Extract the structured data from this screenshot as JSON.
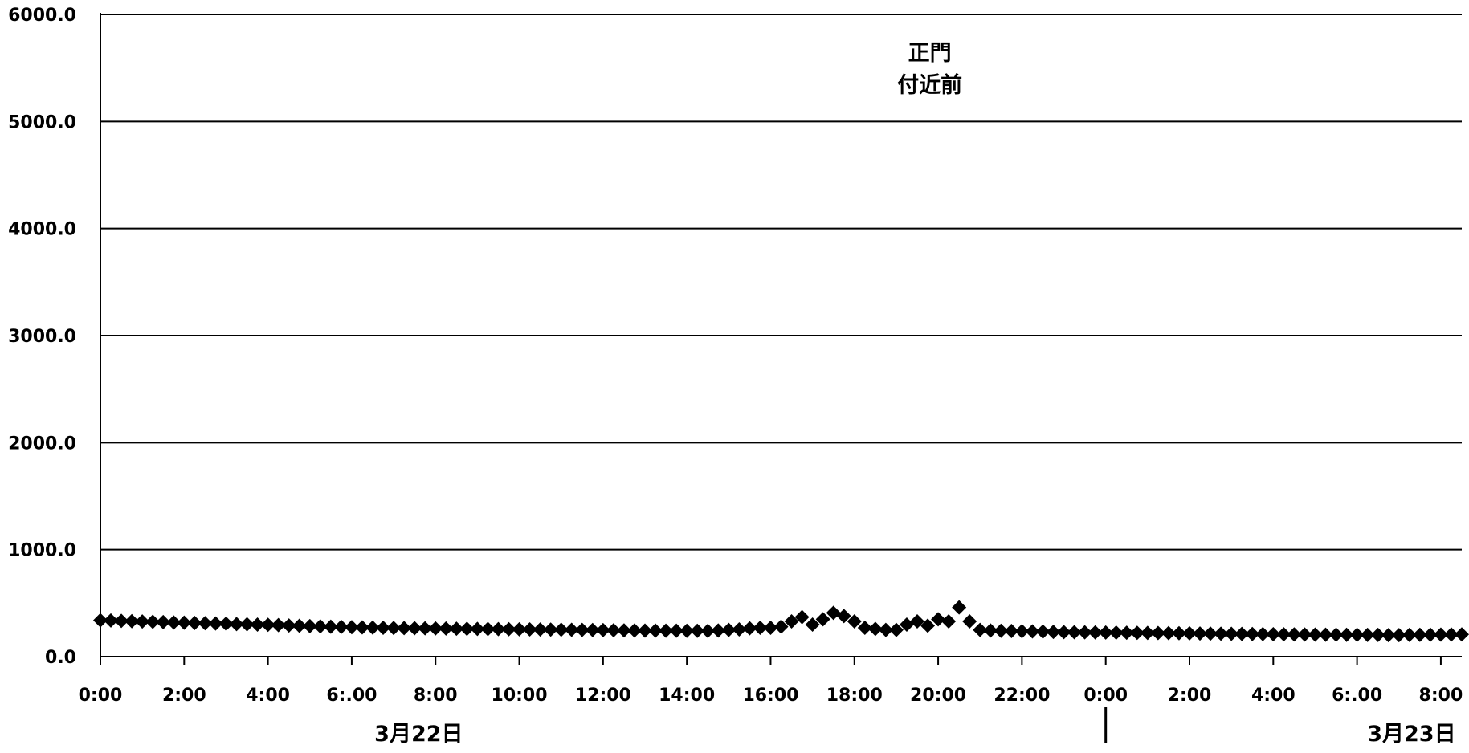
{
  "chart_data": {
    "type": "scatter",
    "title_line1": "正門",
    "title_line2": "付近前",
    "ylim": [
      0,
      6000
    ],
    "y_ticks": [
      "0.0",
      "1000.0",
      "2000.0",
      "3000.0",
      "4000.0",
      "5000.0",
      "6000.0"
    ],
    "x_ticks": [
      "0:00",
      "2:00",
      "4:00",
      "6:.00",
      "8:00",
      "10:00",
      "12:00",
      "14:00",
      "16:00",
      "18:00",
      "20:00",
      "22:00",
      "0:00",
      "2:00",
      "4:00",
      "6:.00",
      "8:00"
    ],
    "date_labels": [
      "3月22日",
      "3月23日"
    ],
    "grid": true,
    "marker": "diamond",
    "marker_color": "#000000",
    "x_unit": "hours since 3月22日 0:00",
    "x_range": [
      0,
      32.5
    ],
    "series": [
      {
        "values": [
          [
            0.0,
            340
          ],
          [
            0.25,
            338
          ],
          [
            0.5,
            335
          ],
          [
            0.75,
            332
          ],
          [
            1.0,
            329
          ],
          [
            1.25,
            326
          ],
          [
            1.5,
            323
          ],
          [
            1.75,
            320
          ],
          [
            2.0,
            318
          ],
          [
            2.25,
            315
          ],
          [
            2.5,
            313
          ],
          [
            2.75,
            310
          ],
          [
            3.0,
            308
          ],
          [
            3.25,
            305
          ],
          [
            3.5,
            303
          ],
          [
            3.75,
            300
          ],
          [
            4.0,
            298
          ],
          [
            4.25,
            295
          ],
          [
            4.5,
            292
          ],
          [
            4.75,
            289
          ],
          [
            5.0,
            286
          ],
          [
            5.25,
            283
          ],
          [
            5.5,
            280
          ],
          [
            5.75,
            278
          ],
          [
            6.0,
            276
          ],
          [
            6.25,
            274
          ],
          [
            6.5,
            272
          ],
          [
            6.75,
            270
          ],
          [
            7.0,
            268
          ],
          [
            7.25,
            267
          ],
          [
            7.5,
            266
          ],
          [
            7.75,
            265
          ],
          [
            8.0,
            264
          ],
          [
            8.25,
            263
          ],
          [
            8.5,
            262
          ],
          [
            8.75,
            261
          ],
          [
            9.0,
            260
          ],
          [
            9.25,
            259
          ],
          [
            9.5,
            258
          ],
          [
            9.75,
            257
          ],
          [
            10.0,
            256
          ],
          [
            10.25,
            255
          ],
          [
            10.5,
            254
          ],
          [
            10.75,
            253
          ],
          [
            11.0,
            252
          ],
          [
            11.25,
            251
          ],
          [
            11.5,
            250
          ],
          [
            11.75,
            249
          ],
          [
            12.0,
            248
          ],
          [
            12.25,
            247
          ],
          [
            12.5,
            246
          ],
          [
            12.75,
            245
          ],
          [
            13.0,
            244
          ],
          [
            13.25,
            244
          ],
          [
            13.5,
            243
          ],
          [
            13.75,
            243
          ],
          [
            14.0,
            242
          ],
          [
            14.25,
            242
          ],
          [
            14.5,
            241
          ],
          [
            14.75,
            245
          ],
          [
            15.0,
            250
          ],
          [
            15.25,
            255
          ],
          [
            15.5,
            265
          ],
          [
            15.75,
            270
          ],
          [
            16.0,
            270
          ],
          [
            16.25,
            280
          ],
          [
            16.5,
            330
          ],
          [
            16.75,
            370
          ],
          [
            17.0,
            300
          ],
          [
            17.25,
            350
          ],
          [
            17.5,
            410
          ],
          [
            17.75,
            380
          ],
          [
            18.0,
            330
          ],
          [
            18.25,
            270
          ],
          [
            18.5,
            260
          ],
          [
            18.75,
            250
          ],
          [
            19.0,
            250
          ],
          [
            19.25,
            300
          ],
          [
            19.5,
            330
          ],
          [
            19.75,
            290
          ],
          [
            20.0,
            350
          ],
          [
            20.25,
            330
          ],
          [
            20.5,
            460
          ],
          [
            20.75,
            330
          ],
          [
            21.0,
            250
          ],
          [
            21.25,
            245
          ],
          [
            21.5,
            242
          ],
          [
            21.75,
            240
          ],
          [
            22.0,
            238
          ],
          [
            22.25,
            236
          ],
          [
            22.5,
            234
          ],
          [
            22.75,
            232
          ],
          [
            23.0,
            230
          ],
          [
            23.25,
            229
          ],
          [
            23.5,
            228
          ],
          [
            23.75,
            227
          ],
          [
            24.0,
            226
          ],
          [
            24.25,
            225
          ],
          [
            24.5,
            224
          ],
          [
            24.75,
            223
          ],
          [
            25.0,
            222
          ],
          [
            25.25,
            221
          ],
          [
            25.5,
            220
          ],
          [
            25.75,
            219
          ],
          [
            26.0,
            218
          ],
          [
            26.25,
            217
          ],
          [
            26.5,
            216
          ],
          [
            26.75,
            215
          ],
          [
            27.0,
            214
          ],
          [
            27.25,
            213
          ],
          [
            27.5,
            212
          ],
          [
            27.75,
            211
          ],
          [
            28.0,
            210
          ],
          [
            28.25,
            209
          ],
          [
            28.5,
            208
          ],
          [
            28.75,
            207
          ],
          [
            29.0,
            206
          ],
          [
            29.25,
            205
          ],
          [
            29.5,
            205
          ],
          [
            29.75,
            204
          ],
          [
            30.0,
            204
          ],
          [
            30.25,
            203
          ],
          [
            30.5,
            203
          ],
          [
            30.75,
            202
          ],
          [
            31.0,
            202
          ],
          [
            31.25,
            203
          ],
          [
            31.5,
            204
          ],
          [
            31.75,
            205
          ],
          [
            32.0,
            206
          ],
          [
            32.25,
            207
          ],
          [
            32.5,
            208
          ]
        ]
      }
    ]
  }
}
